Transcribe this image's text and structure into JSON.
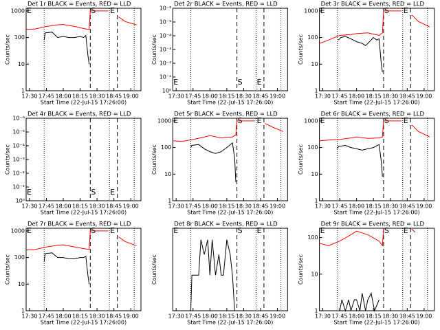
{
  "chart_data": [
    {
      "type": "line",
      "title": "Det 1r BLACK = Events, RED = LLD",
      "xlabel": "Start Time (22-Jul-15 17:26:00)",
      "ylabel": "Counts/sec",
      "log_y": true,
      "xlim": [
        "17:27",
        "19:09"
      ],
      "xticks": [
        "17:30",
        "17:45",
        "18:00",
        "18:15",
        "18:30",
        "18:45",
        "19:00"
      ],
      "ylim": [
        1,
        1260
      ],
      "yticks": [
        1,
        10,
        100,
        1000
      ],
      "label_pos": "top",
      "markers": [
        {
          "x": "17:27",
          "style": "none",
          "label": "E"
        },
        {
          "x": "17:43",
          "style": "dotted"
        },
        {
          "x": "18:24",
          "style": "dashed",
          "label": "S"
        },
        {
          "x": "18:41",
          "style": "dotted",
          "label": "E"
        },
        {
          "x": "18:48",
          "style": "dashed"
        },
        {
          "x": "19:03",
          "style": "dotted"
        }
      ],
      "series": [
        {
          "name": "LLD",
          "color": "#ff0000",
          "x": [
            "17:27",
            "17:35",
            "17:45",
            "17:55",
            "18:00",
            "18:10",
            "18:20",
            "18:23",
            "18:24",
            "18:30",
            "18:40",
            "18:44",
            "18:49",
            "18:55",
            "19:05"
          ],
          "values": [
            200,
            210,
            260,
            300,
            310,
            260,
            210,
            200,
            1000,
            1000,
            1000,
            null,
            600,
            400,
            300
          ]
        },
        {
          "name": "Events",
          "color": "#000000",
          "x": [
            "17:43",
            "17:44",
            "17:50",
            "17:55",
            "18:00",
            "18:05",
            "18:10",
            "18:15",
            "18:18",
            "18:20",
            "18:22",
            "18:23"
          ],
          "values": [
            80,
            150,
            160,
            100,
            110,
            100,
            100,
            110,
            100,
            120,
            20,
            10
          ]
        }
      ]
    },
    {
      "type": "line",
      "title": "Det 2r BLACK = Events, RED = LLD",
      "xlabel": "Start Time (22-Jul-15 17:26:00)",
      "ylabel": "Counts/sec",
      "log_y": true,
      "xlim": [
        "17:27",
        "19:09"
      ],
      "xticks": [
        "17:30",
        "17:45",
        "18:00",
        "18:15",
        "18:30",
        "18:45",
        "19:00"
      ],
      "ylim": [
        1,
        1e-06
      ],
      "yticks": [
        {
          "value": 1,
          "label": "10⁰"
        },
        {
          "value": 0.1,
          "label": "10⁻¹"
        },
        {
          "value": 0.01,
          "label": "10⁻²"
        },
        {
          "value": 0.001,
          "label": "10⁻³"
        },
        {
          "value": 0.0001,
          "label": "10⁻⁴"
        },
        {
          "value": 1e-05,
          "label": "10⁻⁵"
        },
        {
          "value": 1e-06,
          "label": "10⁻⁶"
        }
      ],
      "label_pos": "bottom",
      "markers": [
        {
          "x": "17:27",
          "style": "none",
          "label": "E"
        },
        {
          "x": "17:43",
          "style": "dotted"
        },
        {
          "x": "18:24",
          "style": "dashed",
          "label": "S"
        },
        {
          "x": "18:41",
          "style": "dotted",
          "label": "E"
        },
        {
          "x": "18:48",
          "style": "dashed"
        },
        {
          "x": "19:03",
          "style": "dotted"
        }
      ],
      "series": []
    },
    {
      "type": "line",
      "title": "Det 3r BLACK = Events, RED = LLD",
      "xlabel": "Start Time (22-Jul-15 17:26:00)",
      "ylabel": "Counts/sec",
      "log_y": true,
      "xlim": [
        "17:27",
        "19:09"
      ],
      "xticks": [
        "17:30",
        "17:45",
        "18:00",
        "18:15",
        "18:30",
        "18:45",
        "19:00"
      ],
      "ylim": [
        1,
        1260
      ],
      "yticks": [
        1,
        10,
        100,
        1000
      ],
      "label_pos": "top",
      "markers": [
        {
          "x": "17:27",
          "style": "none",
          "label": "E"
        },
        {
          "x": "17:43",
          "style": "dotted"
        },
        {
          "x": "18:24",
          "style": "dashed",
          "label": "S"
        },
        {
          "x": "18:41",
          "style": "dotted",
          "label": "E"
        },
        {
          "x": "18:48",
          "style": "dashed"
        },
        {
          "x": "19:03",
          "style": "dotted"
        }
      ],
      "series": [
        {
          "name": "LLD",
          "color": "#ff0000",
          "x": [
            "17:27",
            "17:35",
            "17:45",
            "17:55",
            "18:00",
            "18:10",
            "18:20",
            "18:23",
            "18:24",
            "18:30",
            "18:40",
            "18:44",
            "18:49",
            "18:55",
            "19:05"
          ],
          "values": [
            60,
            80,
            120,
            130,
            140,
            150,
            120,
            150,
            1000,
            1000,
            1000,
            null,
            700,
            400,
            250
          ]
        },
        {
          "name": "Events",
          "color": "#000000",
          "x": [
            "17:44",
            "17:46",
            "17:50",
            "17:55",
            "18:00",
            "18:05",
            "18:08",
            "18:10",
            "18:15",
            "18:18",
            "18:20",
            "18:22",
            "18:23"
          ],
          "values": [
            80,
            100,
            110,
            90,
            70,
            60,
            50,
            60,
            100,
            80,
            90,
            10,
            5
          ]
        }
      ]
    },
    {
      "type": "line",
      "title": "Det 4r BLACK = Events, RED = LLD",
      "xlabel": "Start Time (22-Jul-15 17:26:00)",
      "ylabel": "Counts/sec",
      "log_y": true,
      "xlim": [
        "17:27",
        "19:09"
      ],
      "xticks": [
        "17:30",
        "17:45",
        "18:00",
        "18:15",
        "18:30",
        "18:45",
        "19:00"
      ],
      "ylim": [
        1,
        1e-06
      ],
      "yticks": [
        {
          "value": 1,
          "label": "10⁰"
        },
        {
          "value": 0.1,
          "label": "10⁻¹"
        },
        {
          "value": 0.01,
          "label": "10⁻²"
        },
        {
          "value": 0.001,
          "label": "10⁻³"
        },
        {
          "value": 0.0001,
          "label": "10⁻⁴"
        },
        {
          "value": 1e-05,
          "label": "10⁻⁵"
        },
        {
          "value": 1e-06,
          "label": "10⁻⁶"
        }
      ],
      "label_pos": "bottom",
      "markers": [
        {
          "x": "17:27",
          "style": "none",
          "label": "E"
        },
        {
          "x": "17:43",
          "style": "dotted"
        },
        {
          "x": "18:24",
          "style": "dashed",
          "label": "S"
        },
        {
          "x": "18:41",
          "style": "dotted",
          "label": "E"
        },
        {
          "x": "18:48",
          "style": "dashed"
        },
        {
          "x": "19:03",
          "style": "dotted"
        }
      ],
      "series": []
    },
    {
      "type": "line",
      "title": "Det 5r BLACK = Events, RED = LLD",
      "xlabel": "Start Time (22-Jul-15 17:26:00)",
      "ylabel": "Counts/sec",
      "log_y": true,
      "xlim": [
        "17:27",
        "19:09"
      ],
      "xticks": [
        "17:30",
        "17:45",
        "18:00",
        "18:15",
        "18:30",
        "18:45",
        "19:00"
      ],
      "ylim": [
        1,
        1260
      ],
      "yticks": [
        1,
        10,
        100,
        1000
      ],
      "label_pos": "top",
      "markers": [
        {
          "x": "17:27",
          "style": "none",
          "label": "E"
        },
        {
          "x": "17:43",
          "style": "dotted"
        },
        {
          "x": "18:24",
          "style": "dashed",
          "label": "S"
        },
        {
          "x": "18:41",
          "style": "dotted",
          "label": "E"
        },
        {
          "x": "18:48",
          "style": "dashed"
        },
        {
          "x": "19:03",
          "style": "dotted"
        }
      ],
      "series": [
        {
          "name": "LLD",
          "color": "#ff0000",
          "x": [
            "17:27",
            "17:35",
            "17:45",
            "17:55",
            "18:00",
            "18:10",
            "18:20",
            "18:23",
            "18:24",
            "18:30",
            "18:40",
            "18:44",
            "18:49",
            "18:55",
            "19:05"
          ],
          "values": [
            180,
            170,
            200,
            250,
            280,
            230,
            250,
            300,
            1000,
            1000,
            1000,
            null,
            800,
            600,
            400
          ]
        },
        {
          "name": "Events",
          "color": "#000000",
          "x": [
            "17:43",
            "17:44",
            "17:50",
            "17:55",
            "18:00",
            "18:05",
            "18:10",
            "18:15",
            "18:20",
            "18:22",
            "18:23"
          ],
          "values": [
            100,
            120,
            130,
            90,
            70,
            60,
            70,
            100,
            150,
            40,
            5
          ]
        }
      ]
    },
    {
      "type": "line",
      "title": "Det 6r BLACK = Events, RED = LLD",
      "xlabel": "Start Time (22-Jul-15 17:26:00)",
      "ylabel": "Counts/sec",
      "log_y": true,
      "xlim": [
        "17:27",
        "19:09"
      ],
      "xticks": [
        "17:30",
        "17:45",
        "18:00",
        "18:15",
        "18:30",
        "18:45",
        "19:00"
      ],
      "ylim": [
        1,
        1260
      ],
      "yticks": [
        1,
        10,
        100,
        1000
      ],
      "label_pos": "top",
      "markers": [
        {
          "x": "17:27",
          "style": "none",
          "label": "E"
        },
        {
          "x": "17:43",
          "style": "dotted"
        },
        {
          "x": "18:24",
          "style": "dashed",
          "label": "S"
        },
        {
          "x": "18:41",
          "style": "dotted",
          "label": "E"
        },
        {
          "x": "18:48",
          "style": "dashed"
        },
        {
          "x": "19:03",
          "style": "dotted"
        }
      ],
      "series": [
        {
          "name": "LLD",
          "color": "#ff0000",
          "x": [
            "17:27",
            "17:35",
            "17:45",
            "17:55",
            "18:00",
            "18:10",
            "18:20",
            "18:23",
            "18:24",
            "18:30",
            "18:40",
            "18:44",
            "18:49",
            "18:55",
            "19:05"
          ],
          "values": [
            180,
            190,
            200,
            230,
            250,
            220,
            230,
            250,
            1000,
            1000,
            1000,
            null,
            700,
            400,
            250
          ]
        },
        {
          "name": "Events",
          "color": "#000000",
          "x": [
            "17:43",
            "17:44",
            "17:50",
            "17:55",
            "18:00",
            "18:05",
            "18:10",
            "18:15",
            "18:20",
            "18:22",
            "18:23"
          ],
          "values": [
            90,
            110,
            120,
            100,
            90,
            80,
            90,
            100,
            130,
            30,
            8
          ]
        }
      ]
    },
    {
      "type": "line",
      "title": "Det 7r BLACK = Events, RED = LLD",
      "xlabel": "Start Time (22-Jul-15 17:26:00)",
      "ylabel": "Counts/sec",
      "log_y": true,
      "xlim": [
        "17:27",
        "19:09"
      ],
      "xticks": [
        "17:30",
        "17:45",
        "18:00",
        "18:15",
        "18:30",
        "18:45",
        "19:00"
      ],
      "ylim": [
        1,
        1260
      ],
      "yticks": [
        1,
        10,
        100,
        1000
      ],
      "label_pos": "top",
      "markers": [
        {
          "x": "17:27",
          "style": "none",
          "label": "E"
        },
        {
          "x": "17:43",
          "style": "dotted"
        },
        {
          "x": "18:24",
          "style": "dashed",
          "label": "S"
        },
        {
          "x": "18:41",
          "style": "dotted",
          "label": "E"
        },
        {
          "x": "18:48",
          "style": "dashed"
        },
        {
          "x": "19:03",
          "style": "dotted"
        }
      ],
      "series": [
        {
          "name": "LLD",
          "color": "#ff0000",
          "x": [
            "17:27",
            "17:35",
            "17:45",
            "17:55",
            "18:00",
            "18:10",
            "18:20",
            "18:23",
            "18:24",
            "18:30",
            "18:40",
            "18:44",
            "18:49",
            "18:55",
            "19:05"
          ],
          "values": [
            190,
            200,
            250,
            290,
            300,
            250,
            210,
            200,
            1000,
            1000,
            1000,
            null,
            600,
            400,
            280
          ]
        },
        {
          "name": "Events",
          "color": "#000000",
          "x": [
            "17:43",
            "17:44",
            "17:50",
            "17:55",
            "18:00",
            "18:05",
            "18:10",
            "18:15",
            "18:18",
            "18:20",
            "18:22",
            "18:23"
          ],
          "values": [
            70,
            140,
            150,
            100,
            100,
            90,
            90,
            100,
            100,
            110,
            20,
            10
          ]
        }
      ]
    },
    {
      "type": "line",
      "title": "Det 8r BLACK = Events, RED = LLD",
      "xlabel": "Start Time (22-Jul-15 17:26:00)",
      "ylabel": "Counts/sec",
      "log_y": true,
      "xlim": [
        "17:27",
        "19:09"
      ],
      "xticks": [
        "17:30",
        "17:45",
        "18:00",
        "18:15",
        "18:30",
        "18:45",
        "19:00"
      ],
      "ylim": [
        1,
        5
      ],
      "yticks": [],
      "label_pos": "top",
      "markers": [
        {
          "x": "17:27",
          "style": "none",
          "label": "E"
        },
        {
          "x": "17:43",
          "style": "dotted"
        },
        {
          "x": "18:24",
          "style": "dashed",
          "label": "S"
        },
        {
          "x": "18:41",
          "style": "dotted",
          "label": "E"
        },
        {
          "x": "18:48",
          "style": "dashed"
        },
        {
          "x": "19:03",
          "style": "dotted"
        }
      ],
      "series": [
        {
          "name": "Events",
          "color": "#000000",
          "x": [
            "17:43",
            "17:44",
            "17:50",
            "17:52",
            "17:55",
            "17:58",
            "18:00",
            "18:02",
            "18:05",
            "18:08",
            "18:10",
            "18:12",
            "18:15",
            "18:18",
            "18:20",
            "18:22"
          ],
          "values": [
            1,
            2,
            2,
            4,
            3,
            4,
            2,
            4,
            2,
            3,
            2,
            2,
            4,
            3,
            2,
            1
          ]
        }
      ]
    },
    {
      "type": "line",
      "title": "Det 9r BLACK = Events, RED = LLD",
      "xlabel": "Start Time (22-Jul-15 17:26:00)",
      "ylabel": "Counts/sec",
      "log_y": true,
      "xlim": [
        "17:27",
        "19:09"
      ],
      "xticks": [
        "17:30",
        "17:45",
        "18:00",
        "18:15",
        "18:30",
        "18:45",
        "19:00"
      ],
      "ylim": [
        1,
        180
      ],
      "yticks": [
        1,
        10,
        100
      ],
      "label_pos": "top",
      "markers": [
        {
          "x": "17:27",
          "style": "none",
          "label": "E"
        },
        {
          "x": "17:43",
          "style": "dotted"
        },
        {
          "x": "18:24",
          "style": "dashed",
          "label": "S"
        },
        {
          "x": "18:41",
          "style": "dotted",
          "label": "E"
        },
        {
          "x": "18:48",
          "style": "dashed"
        },
        {
          "x": "19:03",
          "style": "dotted"
        }
      ],
      "series": [
        {
          "name": "LLD",
          "color": "#ff0000",
          "x": [
            "17:27",
            "17:35",
            "17:45",
            "17:55",
            "18:00",
            "18:10",
            "18:20",
            "18:23",
            "18:24",
            "18:44",
            "18:49",
            "18:52"
          ],
          "values": [
            70,
            60,
            80,
            120,
            150,
            120,
            80,
            60,
            180,
            null,
            170,
            140
          ]
        },
        {
          "name": "Events",
          "color": "#000000",
          "x": [
            "17:45",
            "17:47",
            "17:50",
            "17:53",
            "17:55",
            "17:58",
            "18:00",
            "18:03",
            "18:05",
            "18:08",
            "18:10",
            "18:13",
            "18:16",
            "18:20"
          ],
          "values": [
            1,
            2,
            1,
            2,
            1,
            2,
            2,
            1,
            3,
            1,
            2,
            3,
            1,
            2
          ]
        }
      ]
    }
  ]
}
